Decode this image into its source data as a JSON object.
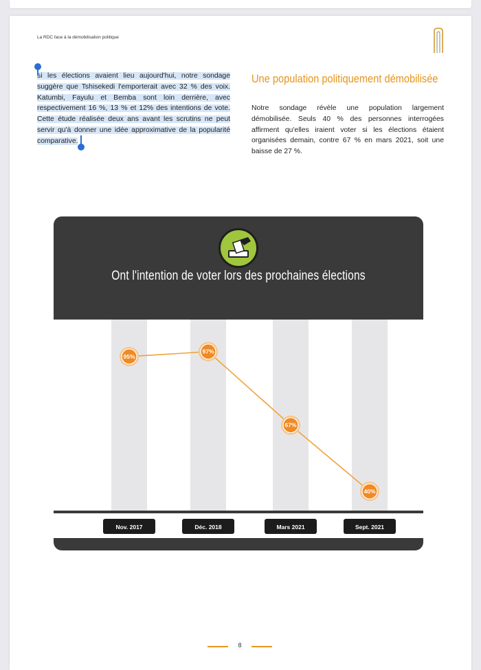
{
  "header": {
    "running_title": "La RDC face à la démobilisation politique"
  },
  "left_column": {
    "paragraph": "si les élections avaient lieu aujourd'hui, notre sondage suggère que Tshisekedi l'emporterait avec 32 % des voix. Katumbi, Fayulu et Bemba sont loin derrière, avec respectivement 16 %, 13 % et 12% des intentions de vote. Cette étude réalisée deux ans avant les scrutins ne peut servir qu'à donner une idée approximative de la popularité comparative."
  },
  "right_column": {
    "heading": "Une population politiquement démobilisée",
    "paragraph": "Notre sondage révèle une population largement démobilisée. Seuls 40 % des personnes interrogées affirment qu'elles iraient voter si les élections étaient organisées demain, contre 67 % en mars 2021, soit une baisse de 27 %."
  },
  "chart_data": {
    "type": "line",
    "title": "Ont l'intention de voter lors des prochaines élections",
    "categories": [
      "Nov. 2017",
      "Déc. 2018",
      "Mars 2021",
      "Sept. 2021"
    ],
    "values": [
      95,
      97,
      67,
      40
    ],
    "labels": [
      "95%",
      "97%",
      "67%",
      "40%"
    ],
    "ylim": [
      40,
      100
    ],
    "grid": false,
    "colors": {
      "line": "#f1a13a",
      "marker": "#f08a24",
      "marker_ring": "#f7c48a",
      "band": "#e6e6e8",
      "card": "#3a3a3a",
      "icon_bg": "#a0c63e"
    }
  },
  "footer": {
    "page_number": "8"
  }
}
